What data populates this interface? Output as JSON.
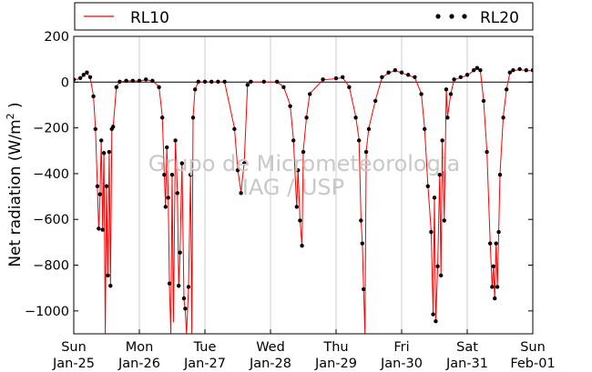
{
  "chart_data": {
    "type": "line",
    "title": "",
    "ylabel": "Net radiation (W/m",
    "ylabel_sup": "2",
    "ylabel_end": " )",
    "xlabel": "",
    "ylim": [
      -1100,
      200
    ],
    "yticks": [
      200,
      0,
      -200,
      -400,
      -600,
      -800,
      -1000
    ],
    "ytick_labels": [
      "200",
      "0",
      "−200",
      "−400",
      "−600",
      "−800",
      "−1000"
    ],
    "xlim": [
      0,
      7
    ],
    "xticks": [
      {
        "x": 0,
        "day": "Sun",
        "date": "Jan-25"
      },
      {
        "x": 1,
        "day": "Mon",
        "date": "Jan-26"
      },
      {
        "x": 2,
        "day": "Tue",
        "date": "Jan-27"
      },
      {
        "x": 3,
        "day": "Wed",
        "date": "Jan-28"
      },
      {
        "x": 4,
        "day": "Thu",
        "date": "Jan-29"
      },
      {
        "x": 5,
        "day": "Fri",
        "date": "Jan-30"
      },
      {
        "x": 6,
        "day": "Sat",
        "date": "Jan-31"
      },
      {
        "x": 7,
        "day": "Sun",
        "date": "Feb-01"
      }
    ],
    "grid": "vertical",
    "zero_line": true,
    "legend": {
      "placement": "top",
      "entries": [
        {
          "label": "RL10",
          "style": "line",
          "color": "#ff0000"
        },
        {
          "label": "RL20",
          "style": "dots",
          "color": "#000000"
        }
      ]
    },
    "watermark": [
      "Grupo de Micrometeorologia",
      "IAG / USP"
    ],
    "series": [
      {
        "name": "RL10",
        "color": "#ff0000",
        "points": [
          [
            0,
            10
          ],
          [
            0.1,
            15
          ],
          [
            0.15,
            30
          ],
          [
            0.2,
            40
          ],
          [
            0.25,
            20
          ],
          [
            0.3,
            -60
          ],
          [
            0.33,
            -200
          ],
          [
            0.36,
            -450
          ],
          [
            0.38,
            -650
          ],
          [
            0.4,
            -500
          ],
          [
            0.42,
            -250
          ],
          [
            0.44,
            -650
          ],
          [
            0.46,
            -300
          ],
          [
            0.48,
            -1100
          ],
          [
            0.5,
            -450
          ],
          [
            0.52,
            -850
          ],
          [
            0.54,
            -300
          ],
          [
            0.56,
            -900
          ],
          [
            0.58,
            -200
          ],
          [
            0.6,
            -200
          ],
          [
            0.65,
            -20
          ],
          [
            0.7,
            0
          ],
          [
            0.8,
            5
          ],
          [
            0.9,
            5
          ],
          [
            1.0,
            5
          ],
          [
            1.1,
            10
          ],
          [
            1.2,
            5
          ],
          [
            1.3,
            -20
          ],
          [
            1.35,
            -150
          ],
          [
            1.38,
            -400
          ],
          [
            1.4,
            -550
          ],
          [
            1.42,
            -280
          ],
          [
            1.44,
            -500
          ],
          [
            1.46,
            -900
          ],
          [
            1.48,
            -1100
          ],
          [
            1.5,
            -400
          ],
          [
            1.52,
            -1050
          ],
          [
            1.55,
            -250
          ],
          [
            1.58,
            -480
          ],
          [
            1.6,
            -900
          ],
          [
            1.62,
            -750
          ],
          [
            1.65,
            -350
          ],
          [
            1.68,
            -950
          ],
          [
            1.7,
            -1000
          ],
          [
            1.72,
            -1100
          ],
          [
            1.75,
            -900
          ],
          [
            1.78,
            -400
          ],
          [
            1.8,
            -1100
          ],
          [
            1.82,
            -150
          ],
          [
            1.85,
            -30
          ],
          [
            1.9,
            0
          ],
          [
            2.0,
            0
          ],
          [
            2.1,
            0
          ],
          [
            2.2,
            0
          ],
          [
            2.3,
            0
          ],
          [
            2.45,
            -200
          ],
          [
            2.5,
            -380
          ],
          [
            2.55,
            -480
          ],
          [
            2.6,
            -350
          ],
          [
            2.65,
            -10
          ],
          [
            2.7,
            0
          ],
          [
            2.9,
            0
          ],
          [
            3.1,
            0
          ],
          [
            3.2,
            -20
          ],
          [
            3.3,
            -100
          ],
          [
            3.35,
            -250
          ],
          [
            3.4,
            -550
          ],
          [
            3.42,
            -380
          ],
          [
            3.45,
            -600
          ],
          [
            3.48,
            -720
          ],
          [
            3.5,
            -300
          ],
          [
            3.55,
            -150
          ],
          [
            3.6,
            -50
          ],
          [
            3.8,
            10
          ],
          [
            4.0,
            15
          ],
          [
            4.1,
            20
          ],
          [
            4.2,
            -20
          ],
          [
            4.3,
            -150
          ],
          [
            4.35,
            -250
          ],
          [
            4.38,
            -600
          ],
          [
            4.4,
            -700
          ],
          [
            4.42,
            -900
          ],
          [
            4.44,
            -1100
          ],
          [
            4.46,
            -300
          ],
          [
            4.5,
            -200
          ],
          [
            4.6,
            -80
          ],
          [
            4.7,
            20
          ],
          [
            4.8,
            40
          ],
          [
            4.9,
            50
          ],
          [
            5.0,
            40
          ],
          [
            5.1,
            30
          ],
          [
            5.2,
            20
          ],
          [
            5.3,
            -50
          ],
          [
            5.35,
            -200
          ],
          [
            5.4,
            -450
          ],
          [
            5.45,
            -650
          ],
          [
            5.48,
            -1020
          ],
          [
            5.5,
            -500
          ],
          [
            5.52,
            -1050
          ],
          [
            5.55,
            -800
          ],
          [
            5.58,
            -400
          ],
          [
            5.6,
            -850
          ],
          [
            5.62,
            -250
          ],
          [
            5.65,
            -600
          ],
          [
            5.68,
            -30
          ],
          [
            5.7,
            -150
          ],
          [
            5.75,
            -50
          ],
          [
            5.8,
            10
          ],
          [
            5.9,
            20
          ],
          [
            6.0,
            30
          ],
          [
            6.1,
            50
          ],
          [
            6.15,
            60
          ],
          [
            6.2,
            50
          ],
          [
            6.25,
            -80
          ],
          [
            6.3,
            -300
          ],
          [
            6.35,
            -700
          ],
          [
            6.38,
            -900
          ],
          [
            6.4,
            -800
          ],
          [
            6.42,
            -950
          ],
          [
            6.44,
            -700
          ],
          [
            6.46,
            -900
          ],
          [
            6.48,
            -650
          ],
          [
            6.5,
            -400
          ],
          [
            6.55,
            -150
          ],
          [
            6.6,
            -30
          ],
          [
            6.65,
            40
          ],
          [
            6.7,
            50
          ],
          [
            6.8,
            55
          ],
          [
            6.9,
            50
          ],
          [
            7.0,
            50
          ]
        ]
      },
      {
        "name": "RL20",
        "color": "#000000",
        "points": [
          [
            0,
            12
          ],
          [
            0.1,
            18
          ],
          [
            0.15,
            32
          ],
          [
            0.2,
            42
          ],
          [
            0.25,
            22
          ],
          [
            0.3,
            -62
          ],
          [
            0.33,
            -205
          ],
          [
            0.36,
            -455
          ],
          [
            0.38,
            -640
          ],
          [
            0.4,
            -490
          ],
          [
            0.42,
            -255
          ],
          [
            0.44,
            -645
          ],
          [
            0.46,
            -310
          ],
          [
            0.5,
            -455
          ],
          [
            0.52,
            -845
          ],
          [
            0.54,
            -305
          ],
          [
            0.56,
            -890
          ],
          [
            0.58,
            -205
          ],
          [
            0.6,
            -195
          ],
          [
            0.65,
            -22
          ],
          [
            0.7,
            2
          ],
          [
            0.8,
            6
          ],
          [
            0.9,
            6
          ],
          [
            1.0,
            6
          ],
          [
            1.1,
            12
          ],
          [
            1.2,
            6
          ],
          [
            1.3,
            -22
          ],
          [
            1.35,
            -155
          ],
          [
            1.38,
            -405
          ],
          [
            1.4,
            -545
          ],
          [
            1.42,
            -285
          ],
          [
            1.44,
            -505
          ],
          [
            1.46,
            -880
          ],
          [
            1.5,
            -405
          ],
          [
            1.55,
            -255
          ],
          [
            1.58,
            -485
          ],
          [
            1.6,
            -890
          ],
          [
            1.62,
            -745
          ],
          [
            1.65,
            -355
          ],
          [
            1.68,
            -945
          ],
          [
            1.7,
            -990
          ],
          [
            1.75,
            -895
          ],
          [
            1.78,
            -405
          ],
          [
            1.82,
            -155
          ],
          [
            1.85,
            -32
          ],
          [
            1.9,
            2
          ],
          [
            2.0,
            2
          ],
          [
            2.1,
            2
          ],
          [
            2.2,
            2
          ],
          [
            2.3,
            2
          ],
          [
            2.45,
            -205
          ],
          [
            2.5,
            -385
          ],
          [
            2.55,
            -485
          ],
          [
            2.6,
            -355
          ],
          [
            2.65,
            -12
          ],
          [
            2.7,
            2
          ],
          [
            2.9,
            2
          ],
          [
            3.1,
            2
          ],
          [
            3.2,
            -22
          ],
          [
            3.3,
            -105
          ],
          [
            3.35,
            -255
          ],
          [
            3.4,
            -545
          ],
          [
            3.42,
            -385
          ],
          [
            3.45,
            -605
          ],
          [
            3.48,
            -715
          ],
          [
            3.5,
            -305
          ],
          [
            3.55,
            -155
          ],
          [
            3.6,
            -52
          ],
          [
            3.8,
            12
          ],
          [
            4.0,
            17
          ],
          [
            4.1,
            22
          ],
          [
            4.2,
            -22
          ],
          [
            4.3,
            -155
          ],
          [
            4.35,
            -255
          ],
          [
            4.38,
            -605
          ],
          [
            4.4,
            -705
          ],
          [
            4.42,
            -905
          ],
          [
            4.46,
            -305
          ],
          [
            4.5,
            -205
          ],
          [
            4.6,
            -82
          ],
          [
            4.7,
            22
          ],
          [
            4.8,
            42
          ],
          [
            4.9,
            52
          ],
          [
            5.0,
            42
          ],
          [
            5.1,
            32
          ],
          [
            5.2,
            22
          ],
          [
            5.3,
            -52
          ],
          [
            5.35,
            -205
          ],
          [
            5.4,
            -455
          ],
          [
            5.45,
            -655
          ],
          [
            5.48,
            -1015
          ],
          [
            5.5,
            -505
          ],
          [
            5.52,
            -1045
          ],
          [
            5.55,
            -805
          ],
          [
            5.58,
            -405
          ],
          [
            5.6,
            -845
          ],
          [
            5.62,
            -255
          ],
          [
            5.65,
            -605
          ],
          [
            5.68,
            -32
          ],
          [
            5.7,
            -155
          ],
          [
            5.75,
            -52
          ],
          [
            5.8,
            12
          ],
          [
            5.9,
            22
          ],
          [
            6.0,
            32
          ],
          [
            6.1,
            52
          ],
          [
            6.15,
            62
          ],
          [
            6.2,
            52
          ],
          [
            6.25,
            -82
          ],
          [
            6.3,
            -305
          ],
          [
            6.35,
            -705
          ],
          [
            6.38,
            -895
          ],
          [
            6.4,
            -805
          ],
          [
            6.42,
            -945
          ],
          [
            6.44,
            -705
          ],
          [
            6.46,
            -895
          ],
          [
            6.48,
            -655
          ],
          [
            6.5,
            -405
          ],
          [
            6.55,
            -155
          ],
          [
            6.6,
            -32
          ],
          [
            6.65,
            42
          ],
          [
            6.7,
            52
          ],
          [
            6.8,
            57
          ],
          [
            6.9,
            52
          ],
          [
            7.0,
            52
          ]
        ]
      }
    ]
  }
}
